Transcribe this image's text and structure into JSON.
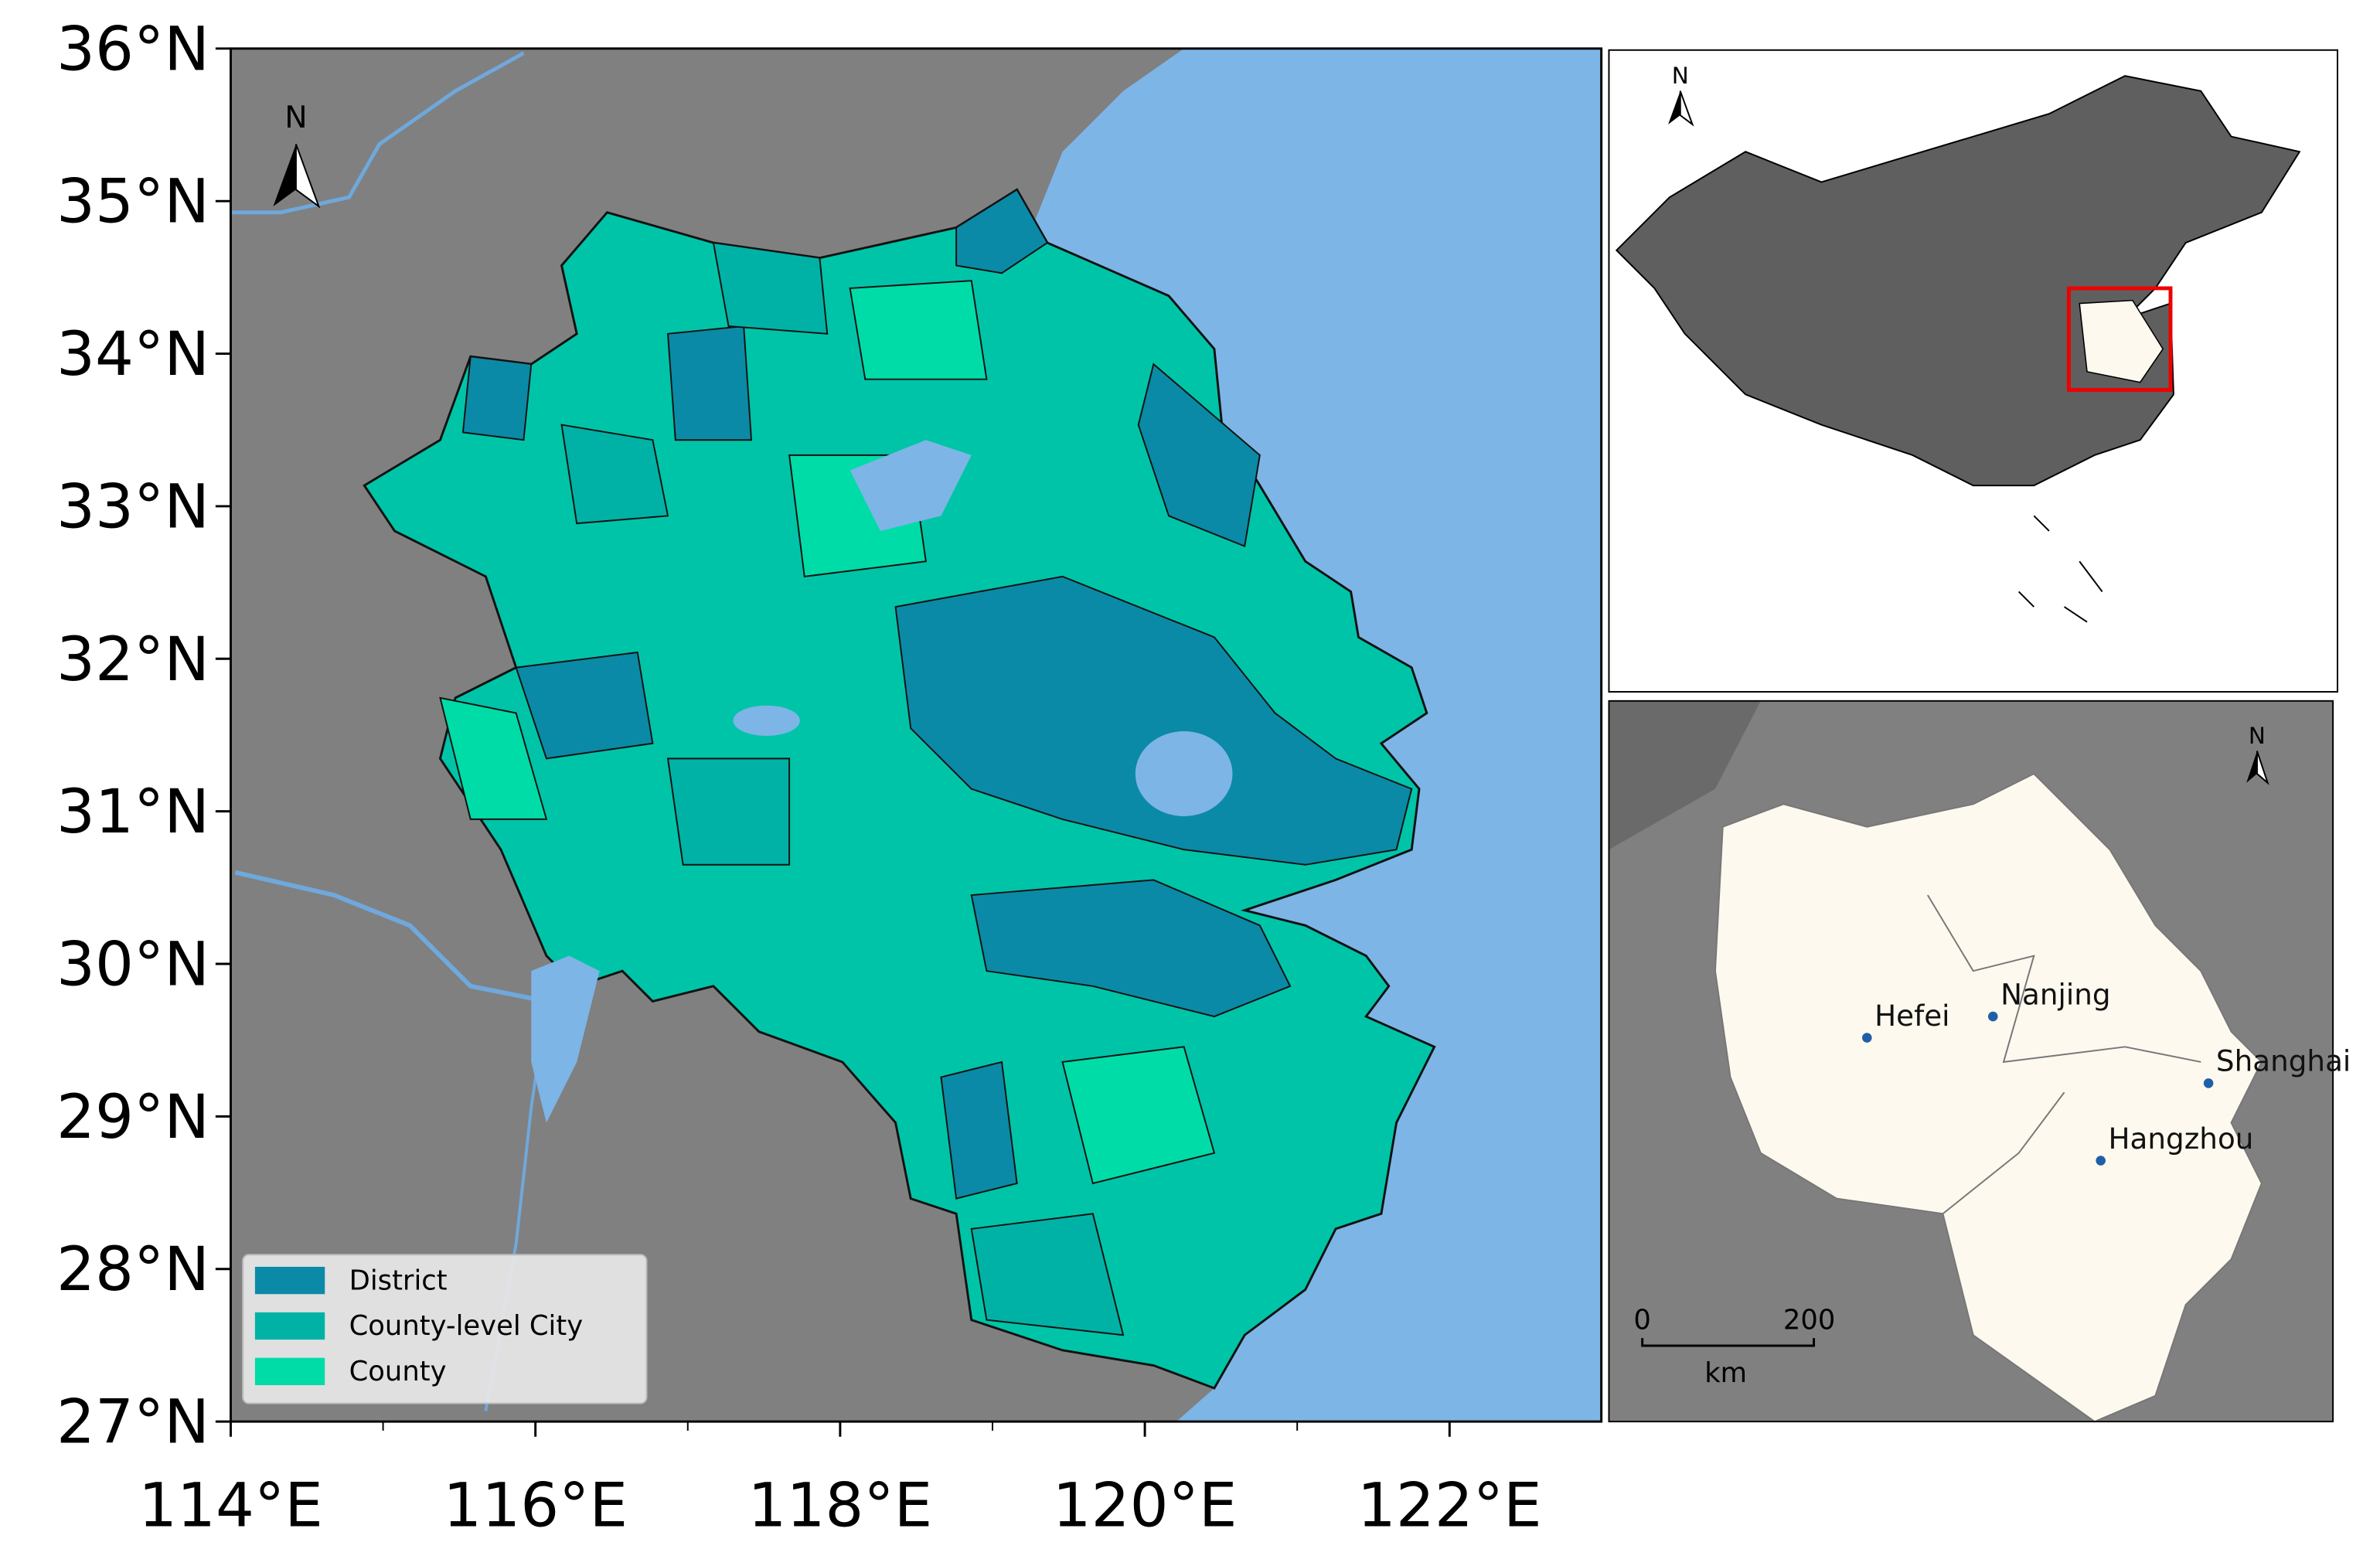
{
  "main_map": {
    "lat_labels": [
      "36°N",
      "35°N",
      "34°N",
      "33°N",
      "32°N",
      "31°N",
      "30°N",
      "29°N",
      "28°N",
      "27°N"
    ],
    "lon_labels": [
      "114°E",
      "116°E",
      "118°E",
      "120°E",
      "122°E"
    ],
    "north_label": "N",
    "legend": [
      {
        "label": "District",
        "color": "#0a8aa6"
      },
      {
        "label": "County-level City",
        "color": "#00b2a6"
      },
      {
        "label": "County",
        "color": "#00dca8"
      }
    ]
  },
  "overview_map": {
    "north_label": "N"
  },
  "detail_map": {
    "north_label": "N",
    "cities": [
      "Hefei",
      "Nanjing",
      "Shanghai",
      "Hangzhou"
    ],
    "scale_bar": {
      "start": "0",
      "end": "200",
      "unit": "km"
    }
  }
}
